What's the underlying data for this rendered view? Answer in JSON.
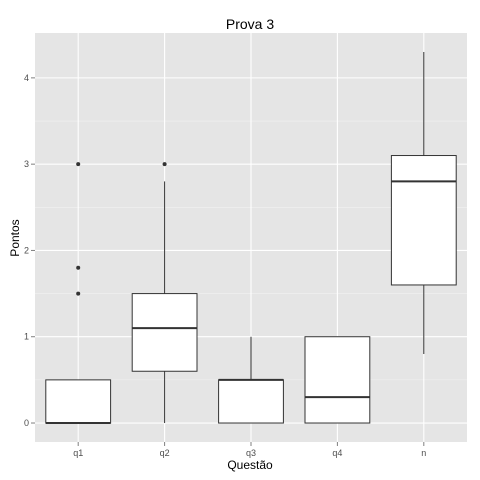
{
  "chart_data": {
    "type": "boxplot",
    "title": "Prova 3",
    "xlabel": "Questão",
    "ylabel": "Pontos",
    "categories": [
      "q1",
      "q2",
      "q3",
      "q4",
      "n"
    ],
    "ylim": [
      -0.22,
      4.52
    ],
    "yticks": [
      0,
      1,
      2,
      3,
      4
    ],
    "grid": true,
    "boxes": [
      {
        "category": "q1",
        "whisker_low": 0,
        "q1": 0,
        "median": 0,
        "q3": 0.5,
        "whisker_high": 0.5,
        "outliers": [
          1.5,
          1.8,
          3.0
        ]
      },
      {
        "category": "q2",
        "whisker_low": 0,
        "q1": 0.6,
        "median": 1.1,
        "q3": 1.5,
        "whisker_high": 2.8,
        "outliers": [
          3.0
        ]
      },
      {
        "category": "q3",
        "whisker_low": 0,
        "q1": 0,
        "median": 0.5,
        "q3": 0.5,
        "whisker_high": 1.0,
        "outliers": []
      },
      {
        "category": "q4",
        "whisker_low": 0,
        "q1": 0,
        "median": 0.3,
        "q3": 1.0,
        "whisker_high": 1.0,
        "outliers": []
      },
      {
        "category": "n",
        "whisker_low": 0.8,
        "q1": 1.6,
        "median": 2.8,
        "q3": 3.1,
        "whisker_high": 4.3,
        "outliers": []
      }
    ],
    "colors": {
      "panel_background": "#e5e5e5",
      "grid_major": "#ffffff",
      "grid_minor": "#f2f2f2",
      "box_fill": "#ffffff",
      "box_line": "#333333",
      "tick_text": "#4d4d4d"
    }
  }
}
